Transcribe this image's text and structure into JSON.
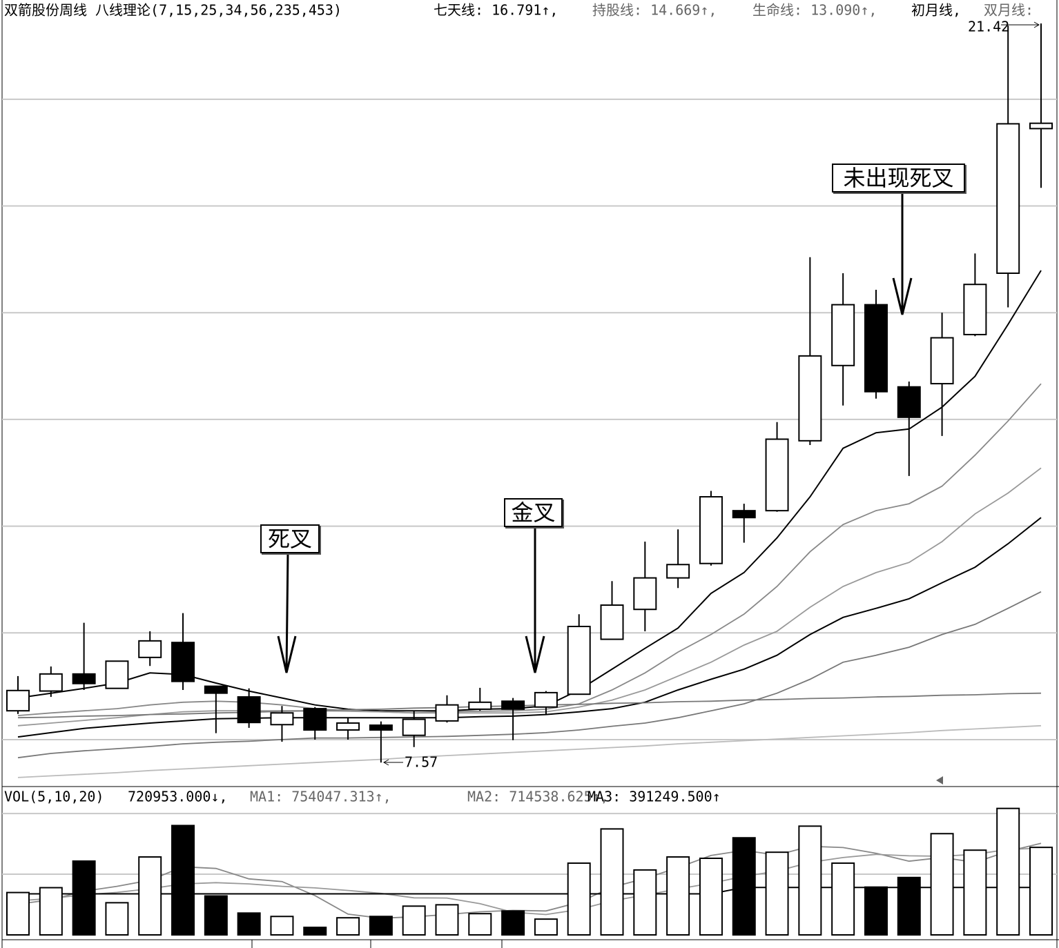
{
  "chart_data": [
    {
      "type": "candlestick",
      "title": "双箭股份周线 八线理论(7,15,25,34,56,235,453)",
      "open": [
        8.54,
        8.91,
        9.23,
        8.96,
        9.54,
        9.82,
        9.0,
        8.8,
        8.28,
        8.58,
        8.18,
        8.27,
        8.08,
        8.35,
        8.57,
        8.72,
        8.61,
        8.85,
        9.88,
        10.44,
        11.03,
        11.3,
        12.29,
        12.29,
        13.6,
        15.01,
        16.15,
        14.61,
        14.67,
        15.59,
        16.74,
        19.45
      ],
      "high": [
        9.19,
        9.37,
        10.19,
        9.47,
        10.03,
        10.37,
        9.0,
        8.96,
        8.63,
        8.61,
        8.41,
        8.34,
        8.54,
        8.83,
        8.97,
        8.78,
        8.91,
        10.35,
        10.97,
        11.71,
        11.94,
        12.66,
        12.42,
        13.95,
        17.04,
        16.74,
        16.43,
        14.71,
        16.0,
        17.11,
        21.38,
        21.42
      ],
      "low": [
        8.48,
        8.8,
        8.93,
        8.96,
        9.38,
        8.93,
        8.12,
        8.22,
        7.96,
        8.0,
        8.0,
        7.57,
        7.86,
        8.32,
        8.54,
        7.99,
        8.47,
        8.85,
        9.88,
        10.03,
        10.84,
        11.26,
        11.69,
        12.27,
        13.52,
        14.26,
        14.39,
        12.94,
        13.69,
        15.56,
        16.1,
        18.34
      ],
      "close": [
        8.92,
        9.23,
        9.05,
        9.47,
        9.85,
        9.09,
        8.87,
        8.32,
        8.5,
        8.18,
        8.31,
        8.18,
        8.38,
        8.65,
        8.7,
        8.57,
        8.88,
        10.12,
        10.52,
        11.03,
        11.28,
        12.55,
        12.16,
        13.63,
        15.19,
        16.15,
        14.52,
        14.04,
        15.53,
        16.53,
        19.54,
        19.55
      ],
      "up_color": "#ffffff",
      "down_color": "#000000",
      "ylim": [
        7.12,
        21.86
      ],
      "gridlines": [
        8,
        10,
        12,
        14,
        16,
        18,
        20
      ],
      "min_label": "7.57",
      "max_label": "21.42",
      "annotations": [
        "死叉",
        "金叉",
        "未出现死叉"
      ],
      "series": [
        {
          "name": "七天线",
          "legend_suffix": ": 16.791↑,",
          "color": "#000000",
          "values": [
            8.78,
            8.87,
            8.96,
            9.06,
            9.25,
            9.22,
            9.06,
            8.91,
            8.78,
            8.65,
            8.57,
            8.54,
            8.54,
            8.54,
            8.57,
            8.58,
            8.63,
            8.93,
            9.32,
            9.71,
            10.09,
            10.74,
            11.13,
            11.78,
            12.55,
            13.46,
            13.75,
            13.82,
            14.23,
            14.81,
            15.78,
            16.791
          ]
        },
        {
          "name": "持股线",
          "legend_suffix": ": 14.669↑,",
          "color": "#888888",
          "values": [
            8.45,
            8.5,
            8.54,
            8.58,
            8.65,
            8.7,
            8.72,
            8.7,
            8.65,
            8.58,
            8.54,
            8.52,
            8.5,
            8.52,
            8.53,
            8.54,
            8.57,
            8.67,
            8.93,
            9.25,
            9.64,
            9.97,
            10.35,
            10.87,
            11.52,
            12.03,
            12.29,
            12.42,
            12.75,
            13.33,
            13.97,
            14.669
          ]
        },
        {
          "name": "生命线",
          "legend_suffix": ": 13.090↑,",
          "color": "#999999",
          "values": [
            8.26,
            8.31,
            8.36,
            8.41,
            8.47,
            8.52,
            8.54,
            8.54,
            8.54,
            8.54,
            8.53,
            8.52,
            8.5,
            8.5,
            8.5,
            8.5,
            8.52,
            8.61,
            8.74,
            8.93,
            9.19,
            9.45,
            9.77,
            10.03,
            10.48,
            10.87,
            11.13,
            11.32,
            11.71,
            12.23,
            12.62,
            13.09
          ]
        },
        {
          "name": "初月线",
          "legend_suffix": ",",
          "color": "#000000",
          "values": [
            8.05,
            8.13,
            8.21,
            8.26,
            8.31,
            8.35,
            8.39,
            8.4,
            8.41,
            8.41,
            8.41,
            8.41,
            8.41,
            8.41,
            8.43,
            8.44,
            8.47,
            8.52,
            8.58,
            8.7,
            8.93,
            9.13,
            9.32,
            9.58,
            9.97,
            10.29,
            10.46,
            10.64,
            10.94,
            11.23,
            11.67,
            12.16
          ]
        },
        {
          "name": "双月线",
          "legend_suffix": ":",
          "color": "#777777",
          "values": [
            7.66,
            7.74,
            7.79,
            7.83,
            7.87,
            7.92,
            7.95,
            7.97,
            8.0,
            8.03,
            8.03,
            8.04,
            8.05,
            8.06,
            8.08,
            8.1,
            8.13,
            8.18,
            8.25,
            8.31,
            8.41,
            8.54,
            8.67,
            8.87,
            9.13,
            9.45,
            9.58,
            9.73,
            9.97,
            10.16,
            10.46,
            10.77
          ]
        },
        {
          "color": "#777777",
          "values": [
            8.41,
            8.42,
            8.44,
            8.45,
            8.47,
            8.48,
            8.5,
            8.51,
            8.53,
            8.54,
            8.56,
            8.57,
            8.59,
            8.6,
            8.62,
            8.63,
            8.65,
            8.66,
            8.68,
            8.69,
            8.71,
            8.72,
            8.74,
            8.75,
            8.77,
            8.78,
            8.8,
            8.81,
            8.83,
            8.84,
            8.86,
            8.87
          ]
        },
        {
          "color": "#bbbbbb",
          "values": [
            7.29,
            7.32,
            7.35,
            7.38,
            7.42,
            7.45,
            7.48,
            7.51,
            7.54,
            7.57,
            7.6,
            7.63,
            7.67,
            7.7,
            7.73,
            7.76,
            7.79,
            7.82,
            7.85,
            7.88,
            7.92,
            7.95,
            7.98,
            8.01,
            8.04,
            8.07,
            8.1,
            8.13,
            8.17,
            8.2,
            8.23,
            8.26
          ]
        }
      ]
    },
    {
      "type": "bar",
      "title": "VOL(5,10,20)",
      "current_label": "720953.000↓,",
      "values": [
        349000,
        389000,
        608000,
        265000,
        642000,
        901000,
        321000,
        180000,
        152000,
        62000,
        141000,
        152000,
        237000,
        248000,
        175000,
        197000,
        130000,
        591000,
        873000,
        535000,
        642000,
        631000,
        800000,
        681000,
        896000,
        591000,
        394000,
        473000,
        834000,
        698000,
        1042000,
        720953
      ],
      "ylim": [
        0,
        1205000
      ],
      "gridlines": [
        500000,
        1000000
      ],
      "series": [
        {
          "name": "MA1",
          "legend_suffix": ": 754047.313↑,",
          "color": "#888888",
          "values": [
            253000,
            290000,
            360000,
            400000,
            450600,
            561000,
            547400,
            461800,
            439200,
            323200,
            171200,
            137400,
            148800,
            168000,
            190600,
            201800,
            197400,
            268200,
            393200,
            465200,
            554200,
            654400,
            696200,
            657800,
            730000,
            719800,
            672400,
            607000,
            637600,
            598000,
            688200,
            754047.313
          ]
        },
        {
          "name": "MA2",
          "legend_suffix": ": 714538.625↑,",
          "color": "#999999",
          "values": [
            280000,
            300000,
            330000,
            350000,
            380000,
            420000,
            430000,
            420000,
            400000,
            386900,
            366100,
            342400,
            305300,
            303600,
            256900,
            186500,
            167400,
            208500,
            280600,
            327900,
            378000,
            425900,
            482200,
            525500,
            597600,
            637000,
            663400,
            651600,
            647700,
            664000,
            704000,
            714538.625
          ]
        },
        {
          "name": "MA3",
          "legend_suffix": ": 391249.500↑",
          "color": "#000000",
          "values": [
            338000,
            338000,
            338000,
            338000,
            338000,
            338000,
            338000,
            338000,
            338000,
            338000,
            338000,
            338000,
            338000,
            338000,
            338000,
            338000,
            338000,
            338000,
            338000,
            338000,
            338000,
            338000,
            391249.5,
            391249.5,
            391249.5,
            391249.5,
            391249.5,
            391249.5,
            391249.5,
            391249.5,
            391249.5,
            391249.5
          ]
        }
      ]
    }
  ]
}
